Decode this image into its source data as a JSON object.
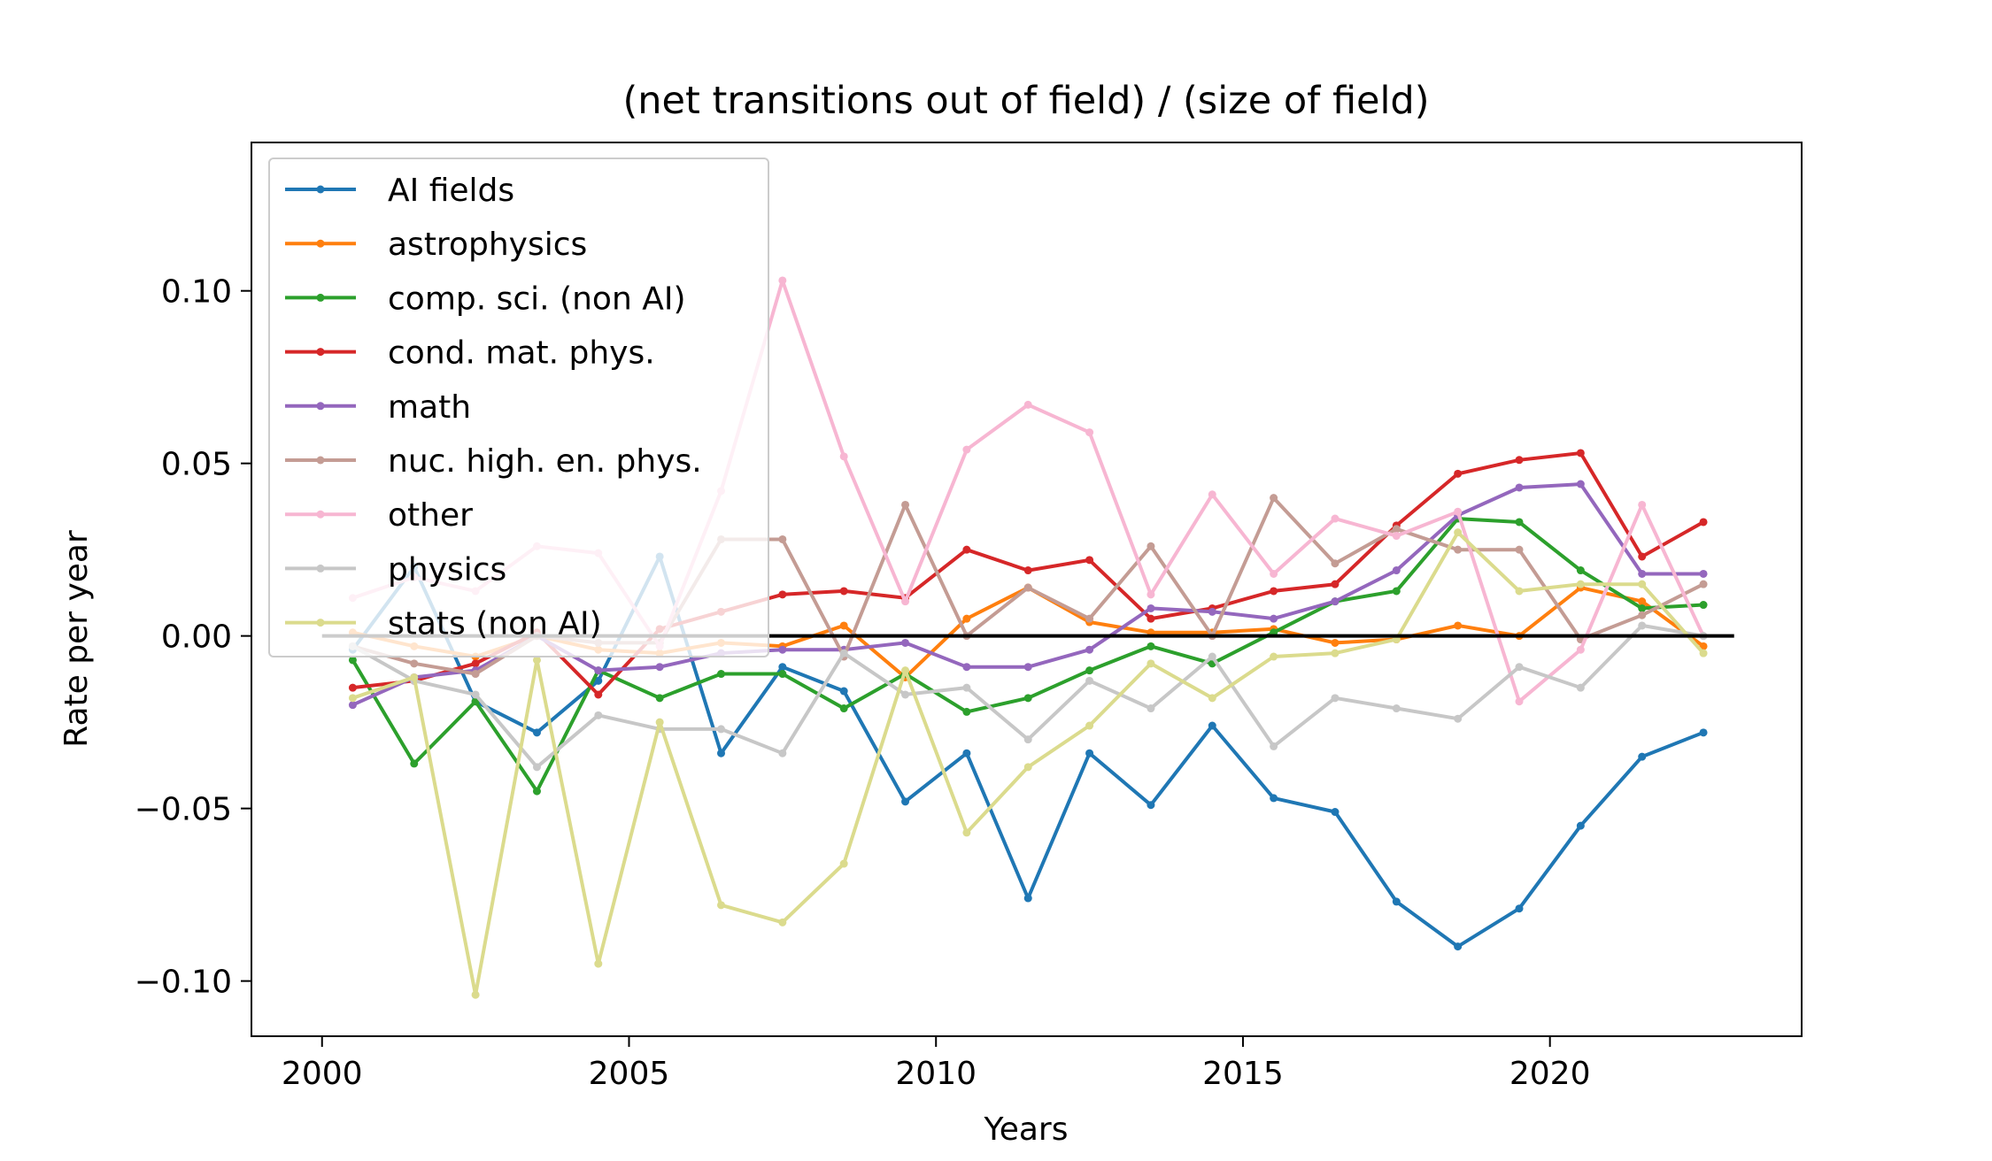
{
  "chart_data": {
    "type": "line",
    "title": "(net transitions out of field) / (size of field)",
    "xlabel": "Years",
    "ylabel": "Rate per year",
    "xlim": [
      1998.85,
      2024.1
    ],
    "ylim": [
      -0.116,
      0.143
    ],
    "xticks": [
      2000,
      2005,
      2010,
      2015,
      2020
    ],
    "xtick_labels": [
      "2000",
      "2005",
      "2010",
      "2015",
      "2020"
    ],
    "yticks": [
      -0.1,
      -0.05,
      0.0,
      0.05,
      0.1
    ],
    "ytick_labels": [
      "−0.10",
      "−0.05",
      "0.00",
      "0.05",
      "0.10"
    ],
    "grid": false,
    "legend_position": "upper-left",
    "reference_line": {
      "y": 0.0,
      "x_range": [
        2000,
        2023
      ],
      "color": "#000000"
    },
    "x": [
      2000.5,
      2001.5,
      2002.5,
      2003.5,
      2004.5,
      2005.5,
      2006.5,
      2007.5,
      2008.5,
      2009.5,
      2010.5,
      2011.5,
      2012.5,
      2013.5,
      2014.5,
      2015.5,
      2016.5,
      2017.5,
      2018.5,
      2019.5,
      2020.5,
      2021.5,
      2022.5
    ],
    "series": [
      {
        "name": "AI fields",
        "color": "#1f77b4",
        "values": [
          -0.004,
          0.02,
          -0.019,
          -0.028,
          -0.013,
          0.023,
          -0.034,
          -0.009,
          -0.016,
          -0.048,
          -0.034,
          -0.076,
          -0.034,
          -0.049,
          -0.026,
          -0.047,
          -0.051,
          -0.077,
          -0.09,
          -0.079,
          -0.055,
          -0.035,
          -0.028
        ]
      },
      {
        "name": "astrophysics",
        "color": "#ff7f0e",
        "values": [
          0.001,
          -0.003,
          -0.006,
          0.0,
          -0.004,
          -0.005,
          -0.002,
          -0.003,
          0.003,
          -0.012,
          0.005,
          0.014,
          0.004,
          0.001,
          0.001,
          0.002,
          -0.002,
          -0.001,
          0.003,
          0.0,
          0.014,
          0.01,
          -0.003
        ]
      },
      {
        "name": "comp. sci. (non AI)",
        "color": "#2ca02c",
        "values": [
          -0.007,
          -0.037,
          -0.019,
          -0.045,
          -0.01,
          -0.018,
          -0.011,
          -0.011,
          -0.021,
          -0.011,
          -0.022,
          -0.018,
          -0.01,
          -0.003,
          -0.008,
          0.001,
          0.01,
          0.013,
          0.034,
          0.033,
          0.019,
          0.008,
          0.009
        ]
      },
      {
        "name": "cond. mat. phys.",
        "color": "#d62728",
        "values": [
          -0.015,
          -0.013,
          -0.008,
          0.001,
          -0.017,
          0.002,
          0.007,
          0.012,
          0.013,
          0.011,
          0.025,
          0.019,
          0.022,
          0.005,
          0.008,
          0.013,
          0.015,
          0.032,
          0.047,
          0.051,
          0.053,
          0.023,
          0.033
        ]
      },
      {
        "name": "math",
        "color": "#9467bd",
        "values": [
          -0.02,
          -0.012,
          -0.01,
          0.0,
          -0.01,
          -0.009,
          -0.005,
          -0.004,
          -0.004,
          -0.002,
          -0.009,
          -0.009,
          -0.004,
          0.008,
          0.007,
          0.005,
          0.01,
          0.019,
          0.035,
          0.043,
          0.044,
          0.018,
          0.018
        ]
      },
      {
        "name": "nuc. high. en. phys.",
        "color": "#c49c94",
        "values": [
          -0.003,
          -0.008,
          -0.011,
          0.0,
          -0.002,
          -0.002,
          0.028,
          0.028,
          -0.006,
          0.038,
          0.0,
          0.014,
          0.005,
          0.026,
          0.0,
          0.04,
          0.021,
          0.031,
          0.025,
          0.025,
          -0.001,
          0.006,
          0.015
        ]
      },
      {
        "name": "other",
        "color": "#f7b6d2",
        "values": [
          0.011,
          0.017,
          0.013,
          0.026,
          0.024,
          -0.003,
          0.042,
          0.103,
          0.052,
          0.01,
          0.054,
          0.067,
          0.059,
          0.012,
          0.041,
          0.018,
          0.034,
          0.029,
          0.036,
          -0.019,
          -0.004,
          0.038,
          0.0
        ]
      },
      {
        "name": "physics",
        "color": "#c7c7c7",
        "values": [
          -0.003,
          -0.013,
          -0.017,
          -0.038,
          -0.023,
          -0.027,
          -0.027,
          -0.034,
          -0.005,
          -0.017,
          -0.015,
          -0.03,
          -0.013,
          -0.021,
          -0.006,
          -0.032,
          -0.018,
          -0.021,
          -0.024,
          -0.009,
          -0.015,
          0.003,
          0.0
        ]
      },
      {
        "name": "stats (non AI)",
        "color": "#dbdb8d",
        "values": [
          -0.018,
          -0.012,
          -0.104,
          -0.007,
          -0.095,
          -0.025,
          -0.078,
          -0.083,
          -0.066,
          -0.01,
          -0.057,
          -0.038,
          -0.026,
          -0.008,
          -0.018,
          -0.006,
          -0.005,
          -0.001,
          0.03,
          0.013,
          0.015,
          0.015,
          -0.005
        ]
      }
    ]
  }
}
